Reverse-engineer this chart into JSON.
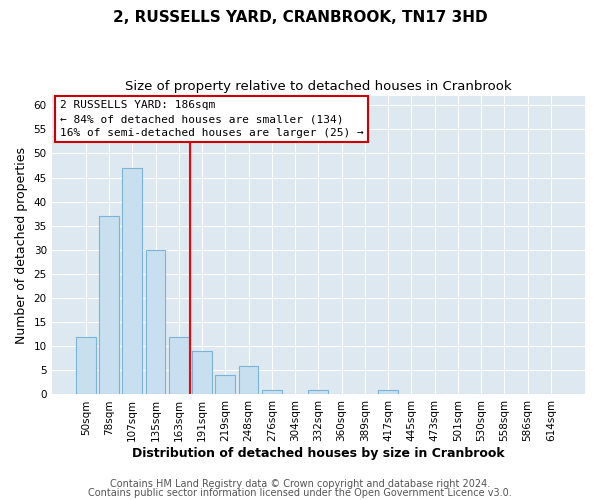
{
  "title": "2, RUSSELLS YARD, CRANBROOK, TN17 3HD",
  "subtitle": "Size of property relative to detached houses in Cranbrook",
  "xlabel": "Distribution of detached houses by size in Cranbrook",
  "ylabel": "Number of detached properties",
  "categories": [
    "50sqm",
    "78sqm",
    "107sqm",
    "135sqm",
    "163sqm",
    "191sqm",
    "219sqm",
    "248sqm",
    "276sqm",
    "304sqm",
    "332sqm",
    "360sqm",
    "389sqm",
    "417sqm",
    "445sqm",
    "473sqm",
    "501sqm",
    "530sqm",
    "558sqm",
    "586sqm",
    "614sqm"
  ],
  "values": [
    12,
    37,
    47,
    30,
    12,
    9,
    4,
    6,
    1,
    0,
    1,
    0,
    0,
    1,
    0,
    0,
    0,
    0,
    0,
    0,
    0
  ],
  "bar_color": "#c8dff0",
  "bar_edgecolor": "#7ab4d8",
  "ylim": [
    0,
    62
  ],
  "yticks": [
    0,
    5,
    10,
    15,
    20,
    25,
    30,
    35,
    40,
    45,
    50,
    55,
    60
  ],
  "red_line_index": 5,
  "annotation_line1": "2 RUSSELLS YARD: 186sqm",
  "annotation_line2": "← 84% of detached houses are smaller (134)",
  "annotation_line3": "16% of semi-detached houses are larger (25) →",
  "footer_line1": "Contains HM Land Registry data © Crown copyright and database right 2024.",
  "footer_line2": "Contains public sector information licensed under the Open Government Licence v3.0.",
  "fig_background": "#ffffff",
  "plot_background": "#dde8f0",
  "grid_color": "#ffffff",
  "title_fontsize": 11,
  "subtitle_fontsize": 9.5,
  "axis_label_fontsize": 9,
  "tick_fontsize": 7.5,
  "footer_fontsize": 7
}
